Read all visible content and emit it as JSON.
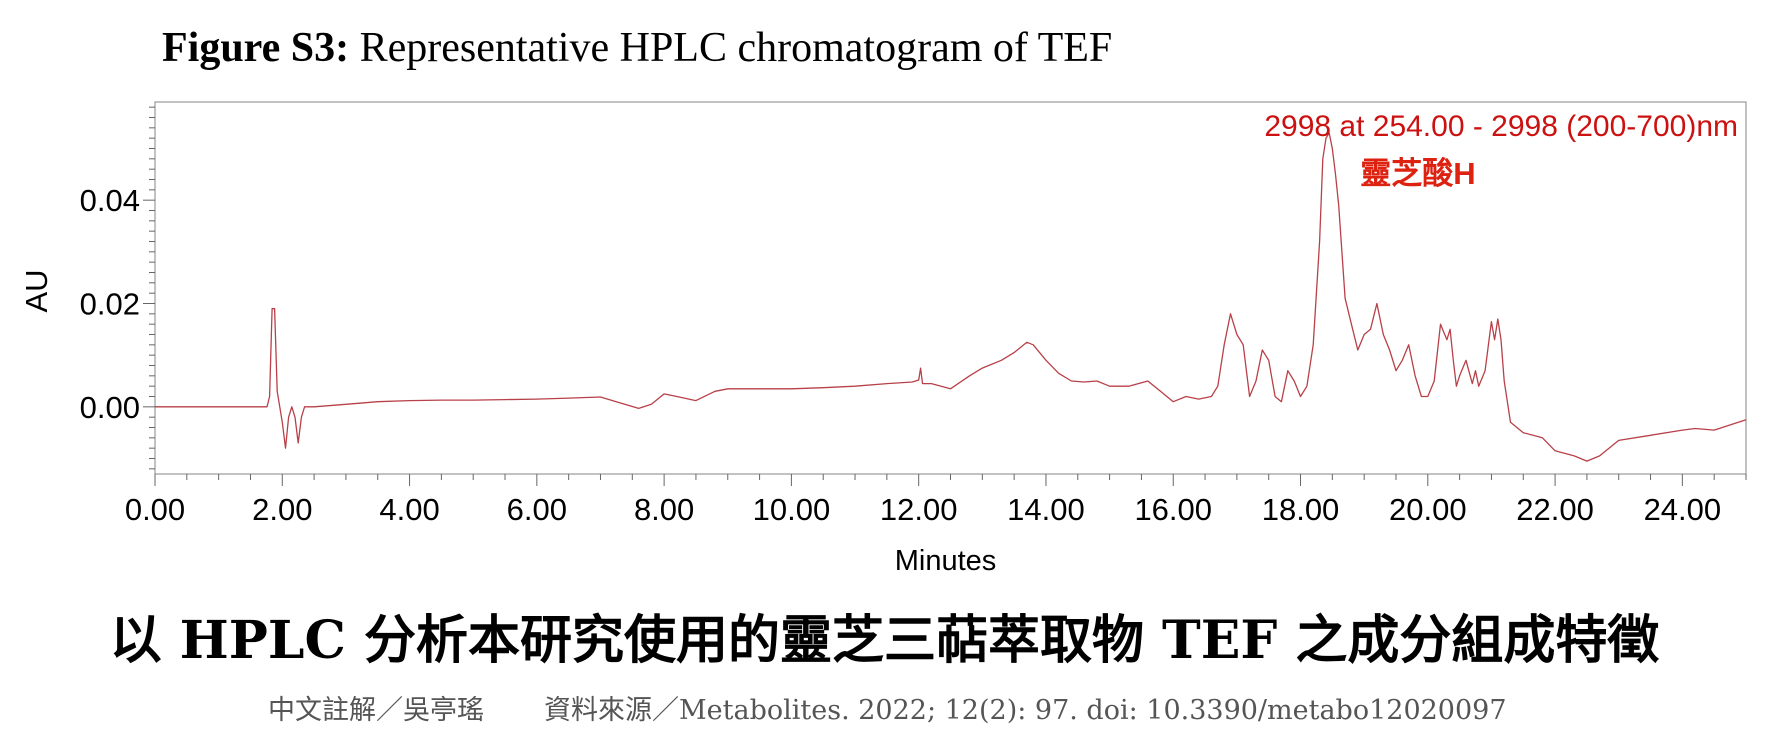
{
  "figure": {
    "label": "Figure S3:",
    "title": " Representative HPLC chromatogram of TEF"
  },
  "caption": {
    "main": "以 HPLC 分析本研究使用的靈芝三萜萃取物 TEF 之成分組成特徵",
    "annotator": "中文註解／吳亭瑤",
    "source": "資料來源／Metabolites. 2022; 12(2): 97. doi: 10.3390/metabo12020097"
  },
  "chart_data": {
    "type": "line",
    "title": "",
    "xlabel": "Minutes",
    "ylabel": "AU",
    "xlim": [
      0,
      25
    ],
    "ylim": [
      -0.013,
      0.059
    ],
    "x_ticks": [
      "0.00",
      "2.00",
      "4.00",
      "6.00",
      "8.00",
      "10.00",
      "12.00",
      "14.00",
      "16.00",
      "18.00",
      "20.00",
      "22.00",
      "24.00"
    ],
    "y_ticks": [
      "0.00",
      "0.02",
      "0.04"
    ],
    "grid": false,
    "line_color": "#b84048",
    "annotations": [
      {
        "text": "2998 at 254.00 - 2998 (200-700)nm",
        "color": "#cc1111"
      },
      {
        "text": "靈芝酸H",
        "color": "#dd2211",
        "x": 18.5,
        "y": 0.054
      }
    ],
    "series": [
      {
        "x": [
          0.0,
          0.5,
          1.0,
          1.5,
          1.7,
          1.76,
          1.8,
          1.84,
          1.88,
          1.92,
          2.0,
          2.05,
          2.1,
          2.15,
          2.2,
          2.25,
          2.3,
          2.35,
          2.5,
          3.0,
          3.5,
          4.0,
          4.5,
          5.0,
          5.5,
          6.0,
          6.5,
          7.0,
          7.3,
          7.6,
          7.8,
          8.0,
          8.2,
          8.5,
          8.8,
          9.0,
          9.5,
          10.0,
          10.5,
          11.0,
          11.5,
          11.9,
          12.0,
          12.03,
          12.06,
          12.2,
          12.5,
          12.8,
          13.0,
          13.3,
          13.5,
          13.7,
          13.8,
          14.0,
          14.2,
          14.4,
          14.6,
          14.8,
          15.0,
          15.3,
          15.6,
          15.8,
          16.0,
          16.2,
          16.4,
          16.6,
          16.7,
          16.8,
          16.9,
          16.95,
          17.0,
          17.1,
          17.2,
          17.3,
          17.4,
          17.5,
          17.6,
          17.7,
          17.8,
          17.9,
          18.0,
          18.1,
          18.2,
          18.3,
          18.35,
          18.4,
          18.45,
          18.5,
          18.55,
          18.6,
          18.7,
          18.8,
          18.9,
          19.0,
          19.1,
          19.2,
          19.3,
          19.4,
          19.5,
          19.6,
          19.7,
          19.8,
          19.9,
          20.0,
          20.1,
          20.2,
          20.3,
          20.35,
          20.4,
          20.45,
          20.5,
          20.6,
          20.7,
          20.75,
          20.8,
          20.9,
          21.0,
          21.05,
          21.1,
          21.15,
          21.2,
          21.3,
          21.5,
          21.8,
          22.0,
          22.3,
          22.5,
          22.7,
          23.0,
          23.5,
          24.0,
          24.2,
          24.5,
          25.0
        ],
        "y": [
          0.0,
          0.0,
          0.0,
          0.0,
          0.0,
          0.0,
          0.002,
          0.019,
          0.019,
          0.003,
          -0.003,
          -0.008,
          -0.002,
          0.0,
          -0.002,
          -0.007,
          -0.002,
          0.0,
          0.0,
          0.0005,
          0.001,
          0.0012,
          0.0013,
          0.0013,
          0.0014,
          0.0015,
          0.0017,
          0.0019,
          0.0008,
          -0.0003,
          0.0005,
          0.0025,
          0.002,
          0.0012,
          0.003,
          0.0035,
          0.0035,
          0.0035,
          0.0037,
          0.004,
          0.0045,
          0.0048,
          0.0052,
          0.0075,
          0.0045,
          0.0045,
          0.0035,
          0.006,
          0.0075,
          0.009,
          0.0105,
          0.0125,
          0.012,
          0.009,
          0.0065,
          0.005,
          0.0048,
          0.005,
          0.004,
          0.004,
          0.005,
          0.003,
          0.001,
          0.002,
          0.0015,
          0.002,
          0.004,
          0.012,
          0.018,
          0.016,
          0.014,
          0.012,
          0.002,
          0.005,
          0.011,
          0.009,
          0.002,
          0.001,
          0.007,
          0.005,
          0.002,
          0.004,
          0.012,
          0.032,
          0.048,
          0.052,
          0.053,
          0.05,
          0.045,
          0.039,
          0.021,
          0.016,
          0.011,
          0.014,
          0.015,
          0.02,
          0.014,
          0.011,
          0.007,
          0.009,
          0.012,
          0.006,
          0.002,
          0.002,
          0.005,
          0.016,
          0.013,
          0.015,
          0.009,
          0.004,
          0.006,
          0.009,
          0.0045,
          0.007,
          0.004,
          0.007,
          0.0165,
          0.013,
          0.017,
          0.013,
          0.005,
          -0.003,
          -0.005,
          -0.006,
          -0.0085,
          -0.0095,
          -0.0105,
          -0.0095,
          -0.0065,
          -0.0055,
          -0.0045,
          -0.0042,
          -0.0045,
          -0.0025
        ]
      }
    ]
  }
}
